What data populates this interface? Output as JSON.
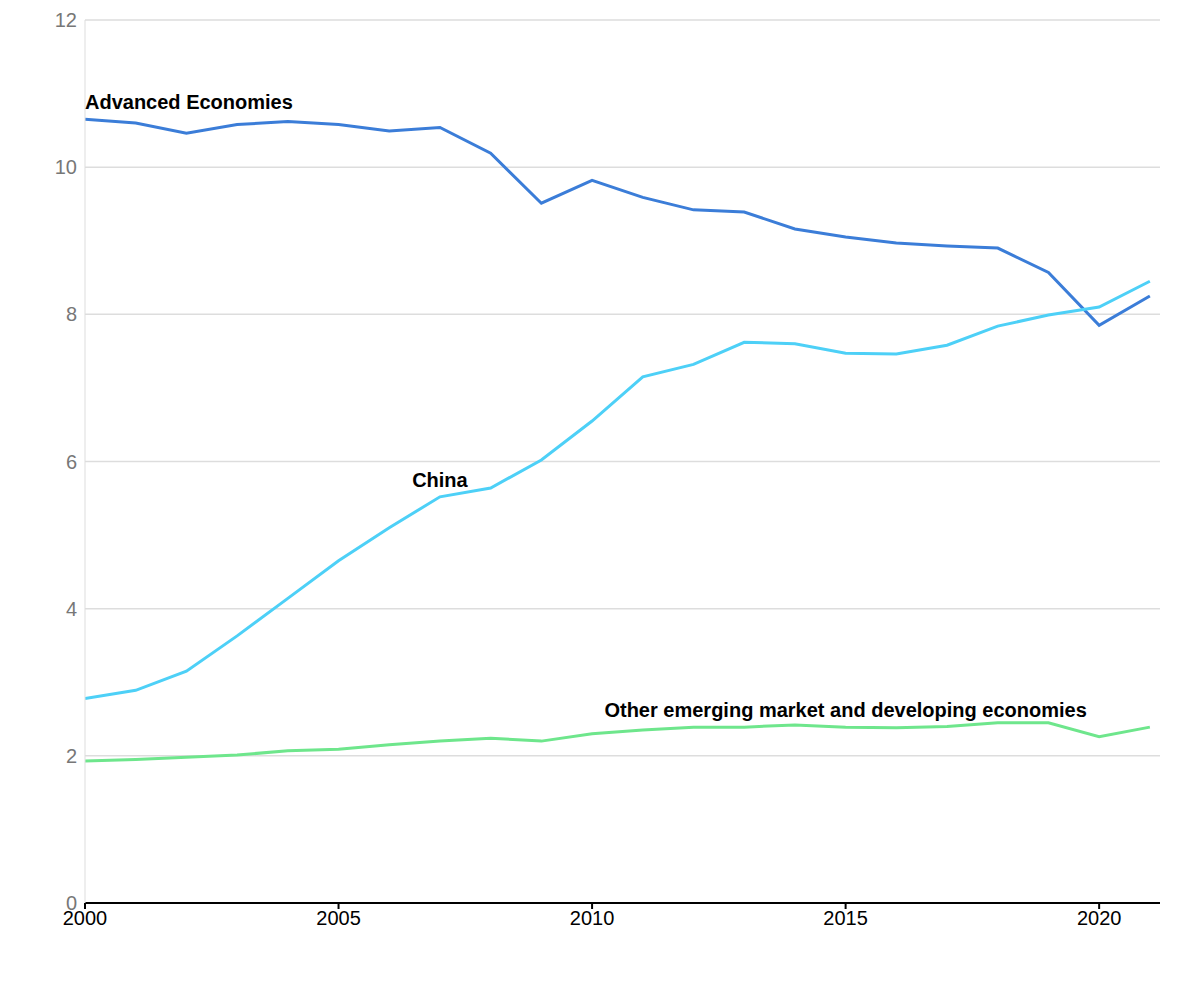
{
  "chart_data": {
    "type": "line",
    "x": [
      2000,
      2001,
      2002,
      2003,
      2004,
      2005,
      2006,
      2007,
      2008,
      2009,
      2010,
      2011,
      2012,
      2013,
      2014,
      2015,
      2016,
      2017,
      2018,
      2019,
      2020,
      2021
    ],
    "series": [
      {
        "name": "Advanced Economies",
        "color": "#3b7dd8",
        "values": [
          10.65,
          10.6,
          10.46,
          10.58,
          10.62,
          10.58,
          10.49,
          10.54,
          10.19,
          9.51,
          9.82,
          9.59,
          9.42,
          9.39,
          9.16,
          9.05,
          8.97,
          8.93,
          8.9,
          8.57,
          7.85,
          8.25
        ]
      },
      {
        "name": "China",
        "color": "#4dd0f7",
        "values": [
          2.78,
          2.89,
          3.15,
          3.63,
          4.14,
          4.65,
          5.1,
          5.52,
          5.64,
          6.02,
          6.55,
          7.15,
          7.32,
          7.62,
          7.6,
          7.47,
          7.46,
          7.58,
          7.84,
          7.99,
          8.1,
          8.45
        ]
      },
      {
        "name": "Other emerging market and developing economies",
        "color": "#6ee68c",
        "values": [
          1.93,
          1.95,
          1.98,
          2.01,
          2.07,
          2.09,
          2.15,
          2.2,
          2.24,
          2.2,
          2.3,
          2.35,
          2.39,
          2.39,
          2.42,
          2.39,
          2.38,
          2.4,
          2.45,
          2.45,
          2.26,
          2.39
        ]
      }
    ],
    "xlim": [
      2000,
      2021.2
    ],
    "xticks": [
      2000,
      2005,
      2010,
      2015,
      2020
    ],
    "ylim": [
      0,
      12
    ],
    "yticks": [
      0,
      2,
      4,
      6,
      8,
      10,
      12
    ],
    "grid": true
  }
}
